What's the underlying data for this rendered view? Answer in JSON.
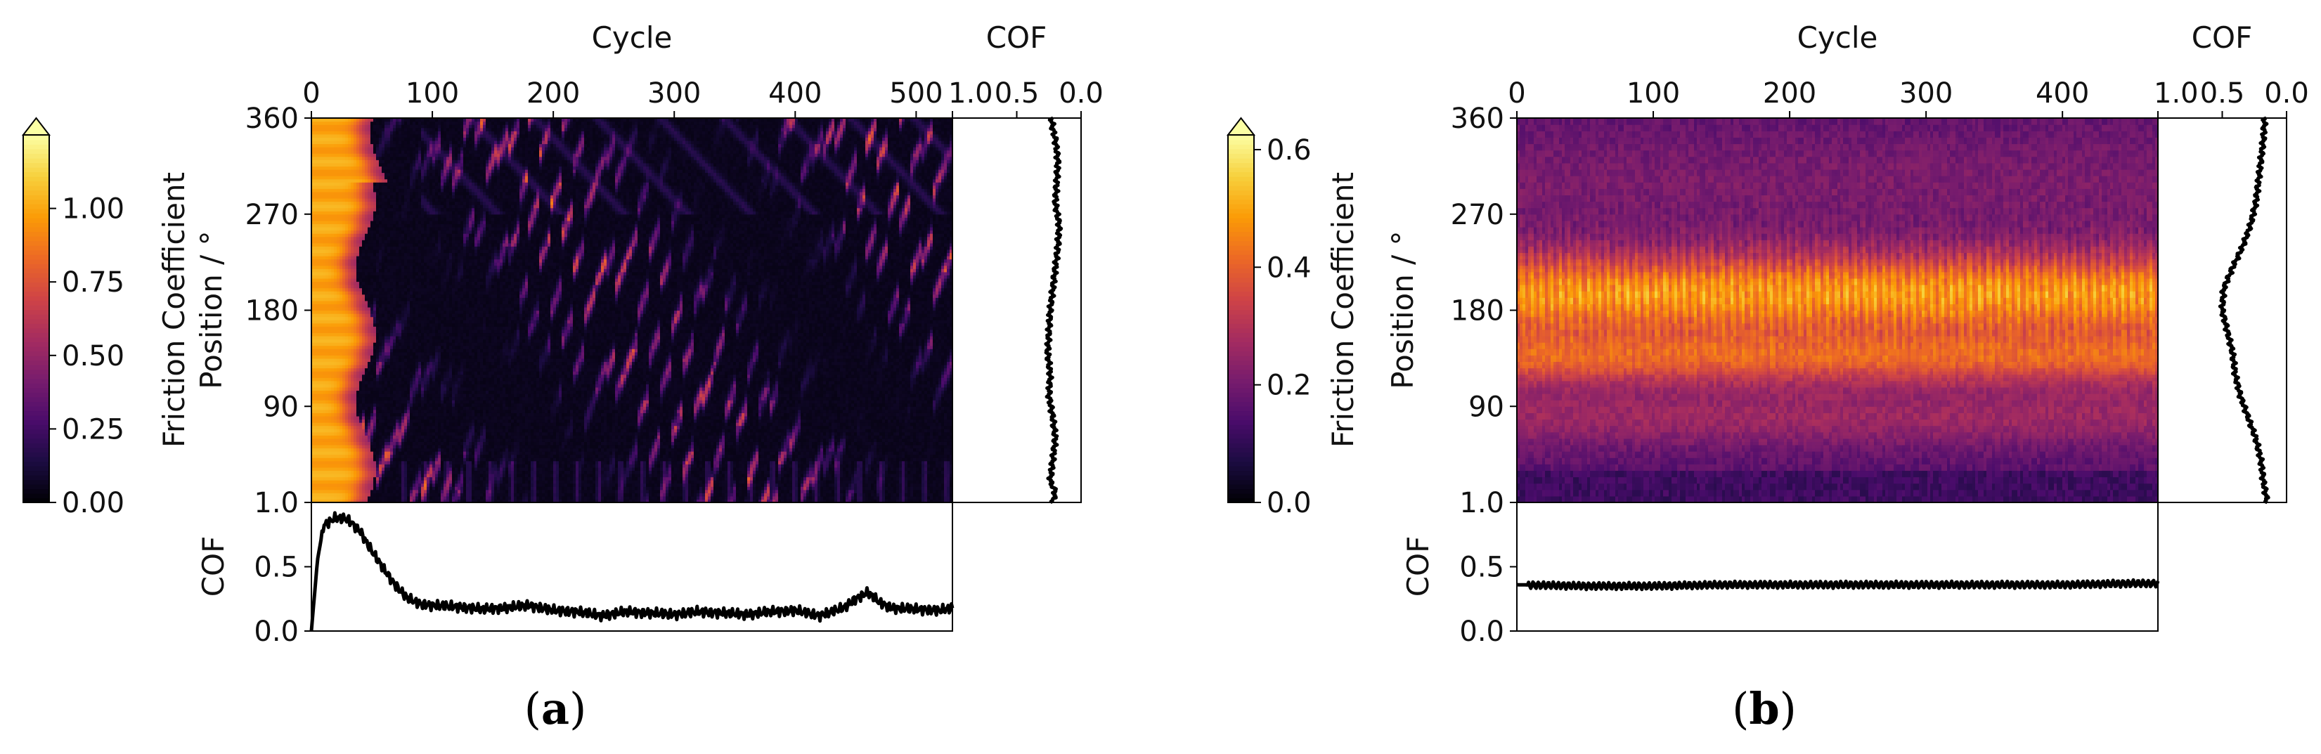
{
  "figure": {
    "panel_labels": [
      {
        "open": "(",
        "letter": "a",
        "close": ")"
      },
      {
        "open": "(",
        "letter": "b",
        "close": ")"
      }
    ]
  },
  "colors": {
    "colormap": [
      "#000004",
      "#1b0c41",
      "#4a0c6b",
      "#781c6d",
      "#a52c60",
      "#cf4446",
      "#ed6925",
      "#fb9b06",
      "#f7d13d",
      "#fcffa4"
    ],
    "line": "#000000"
  },
  "chart_data": [
    {
      "type": "heatmap",
      "panel": "a",
      "heatmap": {
        "xlabel": "Cycle",
        "ylabel": "Position / °",
        "xlim": [
          0,
          530
        ],
        "xticks": [
          0,
          100,
          200,
          300,
          400,
          500
        ],
        "ylim": [
          0,
          360
        ],
        "yticks": [
          360,
          270,
          180,
          90
        ],
        "ytick_labels": [
          "360",
          "270",
          "180",
          "90"
        ],
        "pattern": "high friction (~1.0) during first ~50 cycles, then low (~0.05) with diagonal streaks of 0.3-0.6"
      },
      "colorbar": {
        "label": "Friction Coefficient",
        "min": 0.0,
        "max": 1.25,
        "ticks": [
          0.0,
          0.25,
          0.5,
          0.75,
          1.0
        ],
        "tick_labels": [
          "0.00",
          "0.25",
          "0.50",
          "0.75",
          "1.00"
        ],
        "extend": "max"
      },
      "cof_vs_cycle": {
        "ylabel": "COF",
        "ylim": [
          0,
          1.0
        ],
        "yticks": [
          0.0,
          0.5,
          1.0
        ],
        "ytick_labels": [
          "0.0",
          "0.5",
          "1.0"
        ],
        "x": [
          0,
          5,
          10,
          20,
          30,
          40,
          50,
          60,
          70,
          80,
          90,
          100,
          120,
          140,
          160,
          180,
          200,
          220,
          240,
          260,
          280,
          300,
          320,
          340,
          360,
          380,
          400,
          420,
          440,
          450,
          460,
          470,
          480,
          500,
          520,
          530
        ],
        "values": [
          0.0,
          0.55,
          0.82,
          0.88,
          0.87,
          0.78,
          0.62,
          0.48,
          0.35,
          0.25,
          0.21,
          0.2,
          0.19,
          0.17,
          0.18,
          0.2,
          0.16,
          0.15,
          0.12,
          0.15,
          0.14,
          0.13,
          0.15,
          0.14,
          0.13,
          0.15,
          0.16,
          0.12,
          0.18,
          0.25,
          0.3,
          0.22,
          0.18,
          0.17,
          0.16,
          0.18
        ]
      },
      "cof_vs_position": {
        "xlabel": "COF",
        "xlim": [
          1.0,
          0.0
        ],
        "xticks": [
          1.0,
          0.5,
          0.0
        ],
        "xtick_labels": [
          "1.0",
          "0.5",
          "0.0"
        ],
        "positions": [
          0,
          10,
          20,
          40,
          60,
          80,
          100,
          120,
          140,
          160,
          180,
          200,
          220,
          240,
          260,
          280,
          300,
          320,
          340,
          350,
          360
        ],
        "values": [
          0.22,
          0.2,
          0.24,
          0.22,
          0.2,
          0.22,
          0.25,
          0.24,
          0.26,
          0.25,
          0.24,
          0.22,
          0.2,
          0.18,
          0.17,
          0.2,
          0.19,
          0.18,
          0.2,
          0.22,
          0.23
        ]
      }
    },
    {
      "type": "heatmap",
      "panel": "b",
      "heatmap": {
        "xlabel": "Cycle",
        "ylabel": "Position / °",
        "xlim": [
          0,
          470
        ],
        "xticks": [
          0,
          100,
          200,
          300,
          400
        ],
        "ylim": [
          0,
          360
        ],
        "yticks": [
          360,
          270,
          180,
          90
        ],
        "ytick_labels": [
          "360",
          "270",
          "180",
          "90"
        ],
        "pattern": "horizontal bands: ~0.45-0.55 at 160-230°, ~0.4 at 120-150°, ~0.25 at 60-100°, ~0.15 near 0-30°"
      },
      "colorbar": {
        "label": "Friction Coefficient",
        "min": 0.0,
        "max": 0.625,
        "ticks": [
          0.0,
          0.2,
          0.4,
          0.6
        ],
        "tick_labels": [
          "0.0",
          "0.2",
          "0.4",
          "0.6"
        ],
        "extend": "max"
      },
      "cof_vs_cycle": {
        "ylabel": "COF",
        "ylim": [
          0,
          1.0
        ],
        "yticks": [
          0.0,
          0.5,
          1.0
        ],
        "ytick_labels": [
          "0.0",
          "0.5",
          "1.0"
        ],
        "x": [
          0,
          50,
          100,
          150,
          200,
          250,
          300,
          350,
          400,
          450,
          470
        ],
        "values": [
          0.36,
          0.35,
          0.35,
          0.36,
          0.36,
          0.36,
          0.36,
          0.36,
          0.36,
          0.37,
          0.37
        ]
      },
      "cof_vs_position": {
        "xlabel": "COF",
        "xlim": [
          1.0,
          0.0
        ],
        "xticks": [
          1.0,
          0.5,
          0.0
        ],
        "xtick_labels": [
          "1.0",
          "0.5",
          "0.0"
        ],
        "positions": [
          0,
          20,
          40,
          60,
          80,
          100,
          120,
          140,
          160,
          180,
          200,
          220,
          240,
          260,
          280,
          300,
          320,
          340,
          360
        ],
        "values": [
          0.15,
          0.18,
          0.2,
          0.24,
          0.3,
          0.36,
          0.4,
          0.42,
          0.46,
          0.5,
          0.49,
          0.42,
          0.34,
          0.28,
          0.24,
          0.22,
          0.2,
          0.18,
          0.17
        ]
      }
    }
  ]
}
